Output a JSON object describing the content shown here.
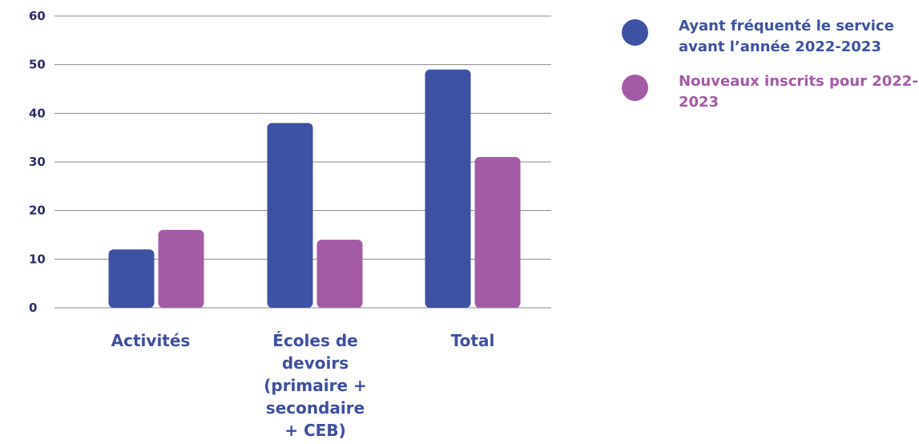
{
  "chart_data": {
    "type": "bar",
    "title": "",
    "xlabel": "",
    "ylabel": "",
    "ylim": [
      0,
      60
    ],
    "yticks": [
      0,
      10,
      20,
      30,
      40,
      50,
      60
    ],
    "grid": true,
    "legend_position": "top-right",
    "categories": [
      "Activités",
      "Écoles de devoirs (primaire + secondaire + CEB)",
      "Total"
    ],
    "series": [
      {
        "name": "Ayant fréquenté le service avant l’année 2022-2023",
        "color": "#3d52a3",
        "values": [
          12,
          38,
          49
        ]
      },
      {
        "name": "Nouveaux inscrits pour 2022-2023",
        "color": "#a35ba6",
        "values": [
          16,
          14,
          31
        ]
      }
    ]
  }
}
